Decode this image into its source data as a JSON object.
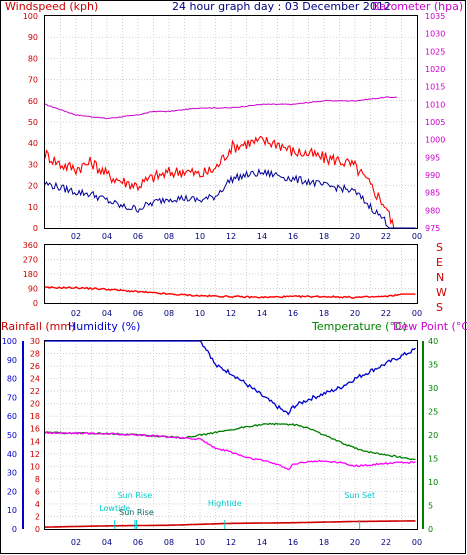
{
  "chart_data": [
    {
      "type": "line",
      "title": "24 hour graph day : 03 December 2012",
      "ylabel_left": "Windspeed (kph)",
      "ylabel_right": "Barometer (hpa)",
      "ylim_left": [
        0,
        100
      ],
      "ylim_right": [
        975,
        1035
      ],
      "y_ticks_left": [
        "0",
        "10",
        "20",
        "30",
        "40",
        "50",
        "60",
        "70",
        "80",
        "90",
        "100"
      ],
      "y_ticks_right": [
        "975",
        "980",
        "985",
        "990",
        "995",
        "1000",
        "1005",
        "1010",
        "1015",
        "1020",
        "1025",
        "1030",
        "1035"
      ],
      "x_ticks": [
        "02",
        "04",
        "06",
        "08",
        "10",
        "12",
        "14",
        "16",
        "18",
        "20",
        "22",
        "00"
      ],
      "grid": true,
      "series": [
        {
          "key": "barometer",
          "color": "#cc00cc",
          "x": [
            0,
            2,
            4,
            6,
            7,
            8,
            10,
            12,
            14,
            16,
            18,
            20,
            22,
            23
          ],
          "y": [
            1010,
            1007,
            1006,
            1007,
            1008,
            1008,
            1009,
            1009,
            1010,
            1010,
            1011,
            1011,
            1012,
            1012
          ]
        },
        {
          "key": "gust",
          "color": "#ff0000",
          "x": [
            0,
            1,
            2,
            3,
            4,
            5,
            6,
            7,
            8,
            9,
            10,
            11,
            12,
            13,
            14,
            15,
            16,
            17,
            18,
            19,
            20,
            21,
            22,
            22.5,
            23,
            24
          ],
          "y": [
            35,
            30,
            28,
            31,
            25,
            22,
            20,
            24,
            26,
            27,
            25,
            28,
            38,
            40,
            41,
            40,
            36,
            35,
            33,
            32,
            29,
            20,
            10,
            0,
            0,
            0
          ]
        },
        {
          "key": "average",
          "color": "#000099",
          "x": [
            0,
            1,
            2,
            3,
            4,
            5,
            6,
            7,
            8,
            9,
            10,
            11,
            12,
            13,
            14,
            15,
            16,
            17,
            18,
            19,
            20,
            21,
            22,
            22.3,
            23,
            24
          ],
          "y": [
            21,
            19,
            17,
            16,
            13,
            10,
            9,
            12,
            14,
            14,
            13,
            15,
            23,
            25,
            26,
            25,
            23,
            22,
            20,
            19,
            17,
            10,
            3,
            0,
            0,
            0
          ]
        }
      ]
    },
    {
      "type": "line",
      "ylim": [
        0,
        360
      ],
      "y_ticks": [
        "0",
        "90",
        "180",
        "270",
        "360"
      ],
      "right_labels": [
        "S",
        "E",
        "N",
        "W",
        "S"
      ],
      "x_ticks": [
        "02",
        "04",
        "06",
        "08",
        "10",
        "12",
        "14",
        "16",
        "18",
        "20",
        "22",
        "00"
      ],
      "grid": true,
      "series": [
        {
          "key": "direction",
          "color": "#ff0000",
          "x": [
            0,
            2,
            4,
            6,
            8,
            10,
            12,
            14,
            16,
            18,
            20,
            22,
            23,
            24
          ],
          "y": [
            95,
            95,
            85,
            70,
            55,
            45,
            40,
            35,
            40,
            40,
            35,
            40,
            55,
            55
          ]
        }
      ]
    },
    {
      "type": "line",
      "labels": [
        "Rainfall (mm)",
        "Humidity (%)",
        "Temperature (°C)",
        "Dew Point (°C)"
      ],
      "ylim_rain": [
        0,
        30
      ],
      "ylim_humidity": [
        0,
        100
      ],
      "ylim_temp": [
        0,
        40
      ],
      "y_ticks_rain": [
        "0",
        "2",
        "4",
        "6",
        "8",
        "10",
        "12",
        "14",
        "16",
        "18",
        "20",
        "22",
        "24",
        "26",
        "28",
        "30"
      ],
      "y_ticks_humidity": [
        "0",
        "10",
        "20",
        "30",
        "40",
        "50",
        "60",
        "70",
        "80",
        "90",
        "100"
      ],
      "y_ticks_temp": [
        "0",
        "5",
        "10",
        "15",
        "20",
        "25",
        "30",
        "35",
        "40"
      ],
      "x_ticks": [
        "02",
        "04",
        "06",
        "08",
        "10",
        "12",
        "14",
        "16",
        "18",
        "20",
        "22",
        "00"
      ],
      "grid": true,
      "annotations": [
        {
          "text": "Sun Rise",
          "x": 5.8
        },
        {
          "text": "Lowtide",
          "x": 4.5
        },
        {
          "text": "Sun Rise",
          "x": 5.9
        },
        {
          "text": "Hightide",
          "x": 11.6
        },
        {
          "text": "Sun Set",
          "x": 20.3
        }
      ],
      "series": [
        {
          "key": "humidity",
          "color": "#0000cc",
          "x": [
            0,
            2,
            4,
            6,
            8,
            10,
            10.5,
            11,
            12,
            13,
            14,
            15,
            15.7,
            16,
            17,
            18,
            19,
            20,
            21,
            22,
            23,
            24
          ],
          "y": [
            100,
            100,
            100,
            100,
            100,
            100,
            95,
            87,
            83,
            77,
            71,
            65,
            61,
            65,
            69,
            72,
            75,
            80,
            84,
            88,
            92,
            96
          ]
        },
        {
          "key": "temperature",
          "color": "#008000",
          "x": [
            0,
            2,
            4,
            6,
            8,
            9,
            10,
            12,
            13,
            14,
            15,
            16,
            17,
            18,
            19,
            20,
            21,
            22,
            23,
            24
          ],
          "y": [
            20.5,
            20.4,
            20.3,
            20,
            19.6,
            19.4,
            20,
            21,
            21.8,
            22.2,
            22.4,
            22.2,
            21.5,
            20,
            18.5,
            17.2,
            16.3,
            15.8,
            15.2,
            14.8
          ]
        },
        {
          "key": "dewpoint",
          "color": "#ff00ff",
          "x": [
            0,
            2,
            4,
            6,
            8,
            9,
            10,
            11,
            12,
            13,
            14,
            15,
            15.7,
            16,
            17,
            18,
            19,
            20,
            21,
            22,
            23,
            24
          ],
          "y": [
            20.5,
            20.4,
            20.3,
            20,
            19.6,
            19.3,
            19.2,
            17.2,
            16.4,
            15.2,
            14.6,
            13.8,
            12.6,
            13.8,
            14.4,
            14.4,
            14.2,
            13.4,
            13.6,
            14,
            14.1,
            14.2
          ]
        },
        {
          "key": "rainfall",
          "color": "#cc0000",
          "x": [
            0,
            4,
            8,
            12,
            16,
            20,
            24
          ],
          "y": [
            0.3,
            0.5,
            0.6,
            0.9,
            1.0,
            1.2,
            1.3
          ]
        }
      ]
    }
  ]
}
